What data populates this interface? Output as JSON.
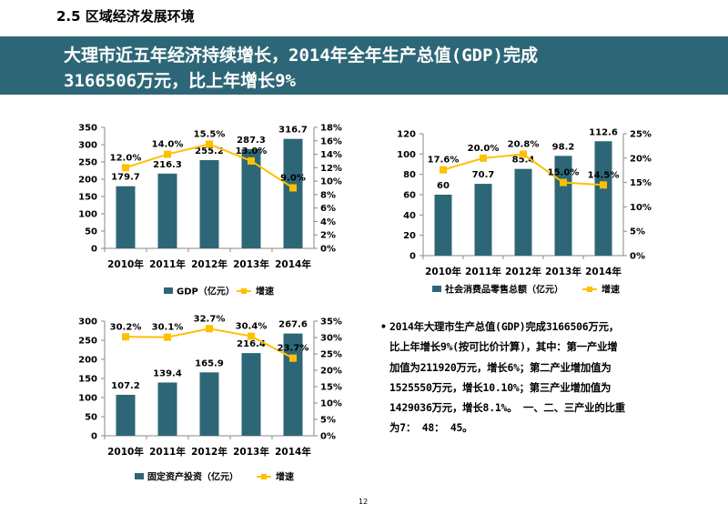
{
  "section": {
    "title": "2.5 区域经济发展环境"
  },
  "banner": {
    "line1": "大理市近五年经济持续增长，2014年全年生产总值(GDP)完成",
    "line2": "3166506万元，比上年增长9%"
  },
  "colors": {
    "bar": "#2d6777",
    "line": "#ffc000",
    "banner": "#2d6777"
  },
  "chart_data": [
    {
      "id": "gdp",
      "type": "bar",
      "categories": [
        "2010年",
        "2011年",
        "2012年",
        "2013年",
        "2014年"
      ],
      "series": [
        {
          "name": "GDP（亿元）",
          "type": "bar",
          "axis": "left",
          "values": [
            179.7,
            216.3,
            255.2,
            287.3,
            316.7
          ],
          "labels": [
            "179.7",
            "216.3",
            "255.2",
            "287.3",
            "316.7"
          ]
        },
        {
          "name": "增速",
          "type": "line",
          "axis": "right",
          "values": [
            12.0,
            14.0,
            15.5,
            13.0,
            9.0
          ],
          "labels": [
            "12.0%",
            "14.0%",
            "15.5%",
            "13.0%",
            "9.0%"
          ]
        }
      ],
      "ylim": [
        0,
        350
      ],
      "yticks": [
        "0",
        "50",
        "100",
        "150",
        "200",
        "250",
        "300",
        "350"
      ],
      "y2lim": [
        0,
        18
      ],
      "y2ticks": [
        "0%",
        "2%",
        "4%",
        "6%",
        "8%",
        "10%",
        "12%",
        "14%",
        "16%",
        "18%"
      ],
      "legend_position": "bottom"
    },
    {
      "id": "retail",
      "type": "bar",
      "categories": [
        "2010年",
        "2011年",
        "2012年",
        "2013年",
        "2014年"
      ],
      "series": [
        {
          "name": "社会消费品零售总额（亿元）",
          "type": "bar",
          "axis": "left",
          "values": [
            60,
            70.7,
            85.4,
            98.2,
            112.6
          ],
          "labels": [
            "60",
            "70.7",
            "85.4",
            "98.2",
            "112.6"
          ]
        },
        {
          "name": "增速",
          "type": "line",
          "axis": "right",
          "values": [
            17.6,
            20.0,
            20.8,
            15.0,
            14.5
          ],
          "labels": [
            "17.6%",
            "20.0%",
            "20.8%",
            "15.0%",
            "14.5%"
          ]
        }
      ],
      "ylim": [
        0,
        120
      ],
      "yticks": [
        "0",
        "20",
        "40",
        "60",
        "80",
        "100",
        "120"
      ],
      "y2lim": [
        0,
        25
      ],
      "y2ticks": [
        "0%",
        "5%",
        "10%",
        "15%",
        "20%",
        "25%"
      ],
      "legend_position": "bottom"
    },
    {
      "id": "investment",
      "type": "bar",
      "categories": [
        "2010年",
        "2011年",
        "2012年",
        "2013年",
        "2014年"
      ],
      "series": [
        {
          "name": "固定资产投资（亿元）",
          "type": "bar",
          "axis": "left",
          "values": [
            107.2,
            139.4,
            165.9,
            216.4,
            267.6
          ],
          "labels": [
            "107.2",
            "139.4",
            "165.9",
            "216.4",
            "267.6"
          ]
        },
        {
          "name": "增速",
          "type": "line",
          "axis": "right",
          "values": [
            30.2,
            30.1,
            32.7,
            30.4,
            23.7
          ],
          "labels": [
            "30.2%",
            "30.1%",
            "32.7%",
            "30.4%",
            "23.7%"
          ]
        }
      ],
      "ylim": [
        0,
        300
      ],
      "yticks": [
        "0",
        "50",
        "100",
        "150",
        "200",
        "250",
        "300"
      ],
      "y2lim": [
        0,
        35
      ],
      "y2ticks": [
        "0%",
        "5%",
        "10%",
        "15%",
        "20%",
        "25%",
        "30%",
        "35%"
      ],
      "legend_position": "bottom"
    }
  ],
  "summary": {
    "bullet_marker": "•",
    "lines": [
      "2014年大理市生产总值(GDP)完成3166506万元，",
      "比上年增长9%(按可比价计算)，其中：第一产业增",
      "加值为211920万元，增长6%；第二产业增加值为",
      "1525550万元，增长10.10%；第三产业增加值为",
      "1429036万元，增长8.1%。 一、二、三产业的比重",
      "为7： 48： 45。"
    ]
  },
  "page": {
    "number": "12"
  }
}
